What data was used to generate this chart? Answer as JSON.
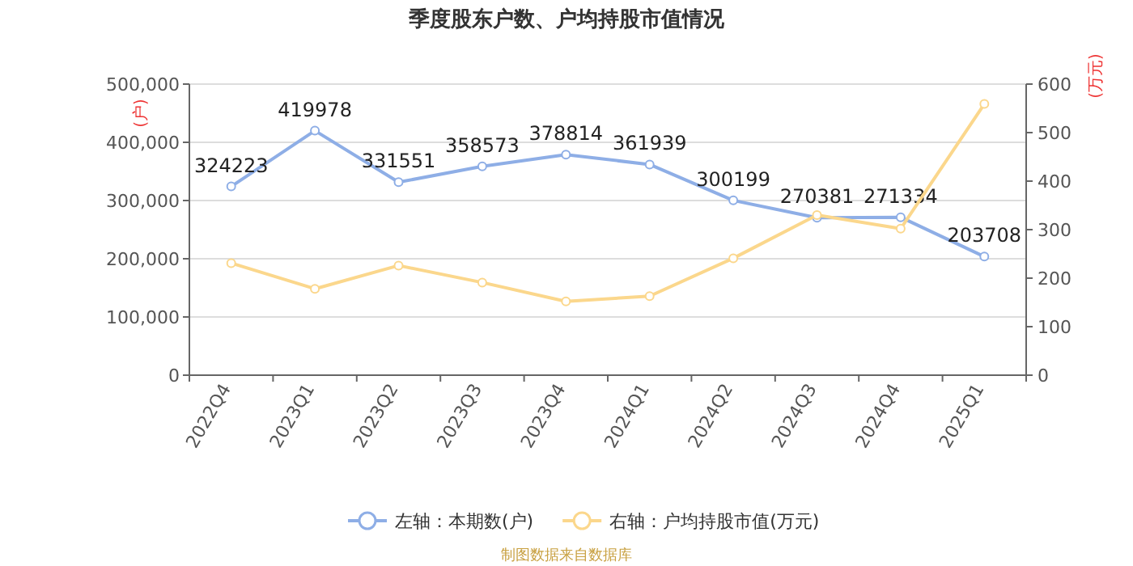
{
  "chart_data": {
    "type": "line",
    "title": "季度股东户数、户均持股市值情况",
    "ylabel": "(户)",
    "y2label": "(万元)",
    "categories": [
      "2022Q4",
      "2023Q1",
      "2023Q2",
      "2023Q3",
      "2023Q4",
      "2024Q1",
      "2024Q2",
      "2024Q3",
      "2024Q4",
      "2025Q1"
    ],
    "series": [
      {
        "name": "左轴：本期数(户)",
        "color": "#8eaee6",
        "values": [
          324223,
          419978,
          331551,
          358573,
          378814,
          361939,
          300199,
          270381,
          271334,
          203708
        ],
        "value_labels": [
          "324223",
          "419978",
          "331551",
          "358573",
          "378814",
          "361939",
          "300199",
          "270381",
          "271334",
          "203708"
        ]
      },
      {
        "name": "右轴：户均持股市值(万元)",
        "color": "#fbd78c",
        "axis": "y2",
        "values": [
          231,
          178,
          226,
          191,
          152,
          163,
          241,
          330,
          302,
          559
        ]
      }
    ],
    "ylim": [
      0,
      500000
    ],
    "yticks": [
      {
        "value": 0,
        "label": "0"
      },
      {
        "value": 100000,
        "label": "100,000"
      },
      {
        "value": 200000,
        "label": "200,000"
      },
      {
        "value": 300000,
        "label": "300,000"
      },
      {
        "value": 400000,
        "label": "400,000"
      },
      {
        "value": 500000,
        "label": "500,000"
      }
    ],
    "y2lim": [
      0,
      600
    ],
    "y2ticks": [
      0,
      100,
      200,
      300,
      400,
      500,
      600
    ],
    "grid": "y",
    "legend": "bottom",
    "marker": "circle",
    "line_style": "solid",
    "annotations": [
      "制图数据来自数据库"
    ]
  }
}
